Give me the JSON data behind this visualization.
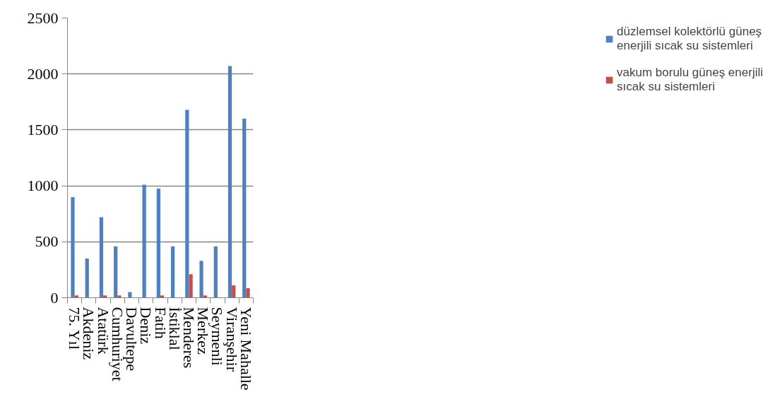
{
  "chart_data": {
    "type": "bar",
    "categories": [
      "75. Yıl",
      "Akdeniz",
      "Atatürk",
      "Cumhuriyet",
      "Davultepe",
      "Deniz",
      "Fatih",
      "İstiklal",
      "Menderes",
      "Merkez",
      "Seymenli",
      "Viranşehir",
      "Yeni Mahalle"
    ],
    "series": [
      {
        "name": "düzlemsel kolektörlü güneş enerjili sıcak su sistemleri",
        "color": "#4f81bd",
        "values": [
          900,
          350,
          720,
          460,
          50,
          1010,
          975,
          460,
          1680,
          330,
          460,
          2070,
          1600
        ]
      },
      {
        "name": "vakum borulu güneş enerjili sıcak su sistemleri",
        "color": "#c0504d",
        "values": [
          20,
          0,
          20,
          20,
          0,
          0,
          20,
          0,
          210,
          20,
          0,
          110,
          85
        ]
      }
    ],
    "ylim": [
      0,
      2500
    ],
    "yticks": [
      0,
      500,
      1000,
      1500,
      2000,
      2500
    ],
    "grid": "y",
    "legend": "right"
  }
}
